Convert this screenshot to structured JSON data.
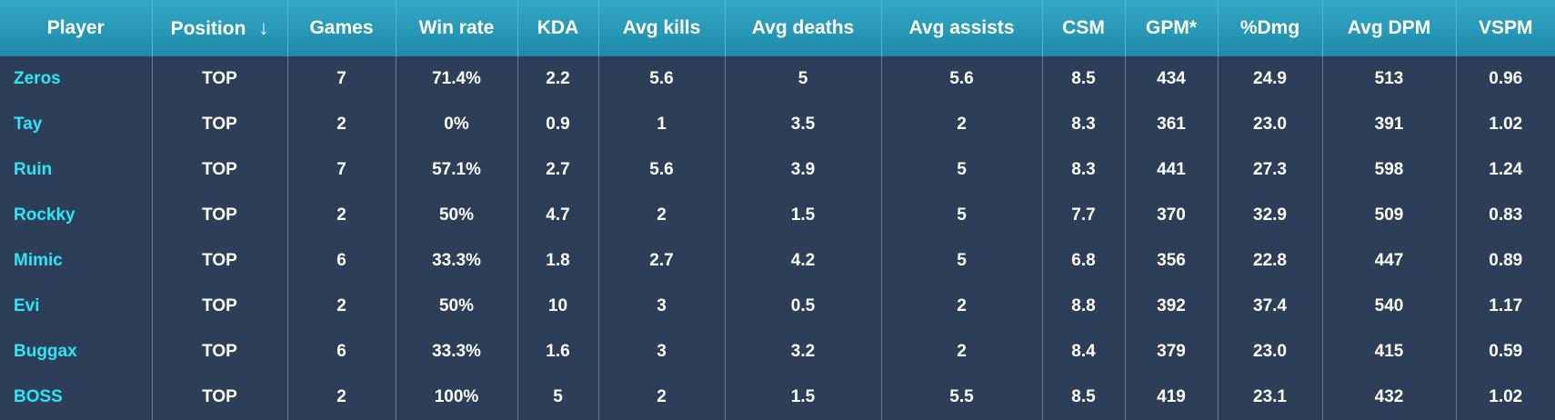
{
  "columns": [
    {
      "key": "player",
      "label": "Player"
    },
    {
      "key": "position",
      "label": "Position",
      "sort_indicator": "↓"
    },
    {
      "key": "games",
      "label": "Games"
    },
    {
      "key": "win_rate",
      "label": "Win rate"
    },
    {
      "key": "kda",
      "label": "KDA"
    },
    {
      "key": "avg_kills",
      "label": "Avg kills"
    },
    {
      "key": "avg_deaths",
      "label": "Avg deaths"
    },
    {
      "key": "avg_assists",
      "label": "Avg assists"
    },
    {
      "key": "csm",
      "label": "CSM"
    },
    {
      "key": "gpm",
      "label": "GPM*"
    },
    {
      "key": "dmg_pct",
      "label": "%Dmg"
    },
    {
      "key": "avg_dpm",
      "label": "Avg DPM"
    },
    {
      "key": "vspm",
      "label": "VSPM"
    }
  ],
  "rows": [
    {
      "player": "Zeros",
      "position": "TOP",
      "games": "7",
      "win_rate": "71.4%",
      "kda": "2.2",
      "avg_kills": "5.6",
      "avg_deaths": "5",
      "avg_assists": "5.6",
      "csm": "8.5",
      "gpm": "434",
      "dmg_pct": "24.9",
      "avg_dpm": "513",
      "vspm": "0.96"
    },
    {
      "player": "Tay",
      "position": "TOP",
      "games": "2",
      "win_rate": "0%",
      "kda": "0.9",
      "avg_kills": "1",
      "avg_deaths": "3.5",
      "avg_assists": "2",
      "csm": "8.3",
      "gpm": "361",
      "dmg_pct": "23.0",
      "avg_dpm": "391",
      "vspm": "1.02"
    },
    {
      "player": "Ruin",
      "position": "TOP",
      "games": "7",
      "win_rate": "57.1%",
      "kda": "2.7",
      "avg_kills": "5.6",
      "avg_deaths": "3.9",
      "avg_assists": "5",
      "csm": "8.3",
      "gpm": "441",
      "dmg_pct": "27.3",
      "avg_dpm": "598",
      "vspm": "1.24"
    },
    {
      "player": "Rockky",
      "position": "TOP",
      "games": "2",
      "win_rate": "50%",
      "kda": "4.7",
      "avg_kills": "2",
      "avg_deaths": "1.5",
      "avg_assists": "5",
      "csm": "7.7",
      "gpm": "370",
      "dmg_pct": "32.9",
      "avg_dpm": "509",
      "vspm": "0.83"
    },
    {
      "player": "Mimic",
      "position": "TOP",
      "games": "6",
      "win_rate": "33.3%",
      "kda": "1.8",
      "avg_kills": "2.7",
      "avg_deaths": "4.2",
      "avg_assists": "5",
      "csm": "6.8",
      "gpm": "356",
      "dmg_pct": "22.8",
      "avg_dpm": "447",
      "vspm": "0.89"
    },
    {
      "player": "Evi",
      "position": "TOP",
      "games": "2",
      "win_rate": "50%",
      "kda": "10",
      "avg_kills": "3",
      "avg_deaths": "0.5",
      "avg_assists": "2",
      "csm": "8.8",
      "gpm": "392",
      "dmg_pct": "37.4",
      "avg_dpm": "540",
      "vspm": "1.17"
    },
    {
      "player": "Buggax",
      "position": "TOP",
      "games": "6",
      "win_rate": "33.3%",
      "kda": "1.6",
      "avg_kills": "3",
      "avg_deaths": "3.2",
      "avg_assists": "2",
      "csm": "8.4",
      "gpm": "379",
      "dmg_pct": "23.0",
      "avg_dpm": "415",
      "vspm": "0.59"
    },
    {
      "player": "BOSS",
      "position": "TOP",
      "games": "2",
      "win_rate": "100%",
      "kda": "5",
      "avg_kills": "2",
      "avg_deaths": "1.5",
      "avg_assists": "5.5",
      "csm": "8.5",
      "gpm": "419",
      "dmg_pct": "23.1",
      "avg_dpm": "432",
      "vspm": "1.02"
    }
  ],
  "colors": {
    "header_bg": "#2797b6",
    "body_bg": "#2c3e58",
    "player_link": "#2ee6f5",
    "text": "#ffffff"
  }
}
